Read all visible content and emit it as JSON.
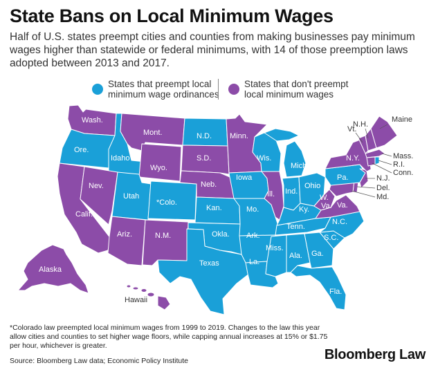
{
  "title": "State Bans on Local Minimum Wages",
  "subtitle": "Half of U.S. states preempt cities and counties from making businesses pay minimum wages higher than statewide or federal minimums, with 14 of those preemption laws adopted between 2013 and 2017.",
  "colors": {
    "preempt": "#1aa0d8",
    "no_preempt": "#8c4ca8",
    "border": "#ffffff"
  },
  "legend": {
    "preempt": "States that preempt local minimum wage ordinances",
    "no_preempt": "States that don't preempt local minimum wages"
  },
  "states": {
    "preempt": [
      "Ore.",
      "Idaho",
      "Utah",
      "Colo.",
      "N.D.",
      "Kan.",
      "Okla.",
      "Texas",
      "Iowa",
      "Mo.",
      "Ark.",
      "La.",
      "Wis.",
      "Mich.",
      "Ind.",
      "Ohio",
      "Ky.",
      "Tenn.",
      "Miss.",
      "Ala.",
      "Ga.",
      "Fla.",
      "S.C.",
      "N.C.",
      "Pa.",
      "R.I."
    ],
    "no_preempt": [
      "Wash.",
      "Mont.",
      "Wyo.",
      "S.D.",
      "Neb.",
      "Minn.",
      "Ill.",
      "Calif.",
      "Nev.",
      "Ariz.",
      "N.M.",
      "Alaska",
      "Hawaii",
      "W. Va.",
      "Va.",
      "N.Y.",
      "Vt.",
      "N.H.",
      "Maine",
      "Mass.",
      "Conn.",
      "N.J.",
      "Del.",
      "Md."
    ]
  },
  "asterisk": "*",
  "note": "*Colorado law preempted local minimum wages from 1999 to 2019. Changes to the law this year allow cities and counties to set higher wage floors, while capping annual increases at 15% or $1.75 per hour, whichever is greater.",
  "source": "Source: Bloomberg Law data; Economic Policy Institute",
  "brand": "Bloomberg Law"
}
